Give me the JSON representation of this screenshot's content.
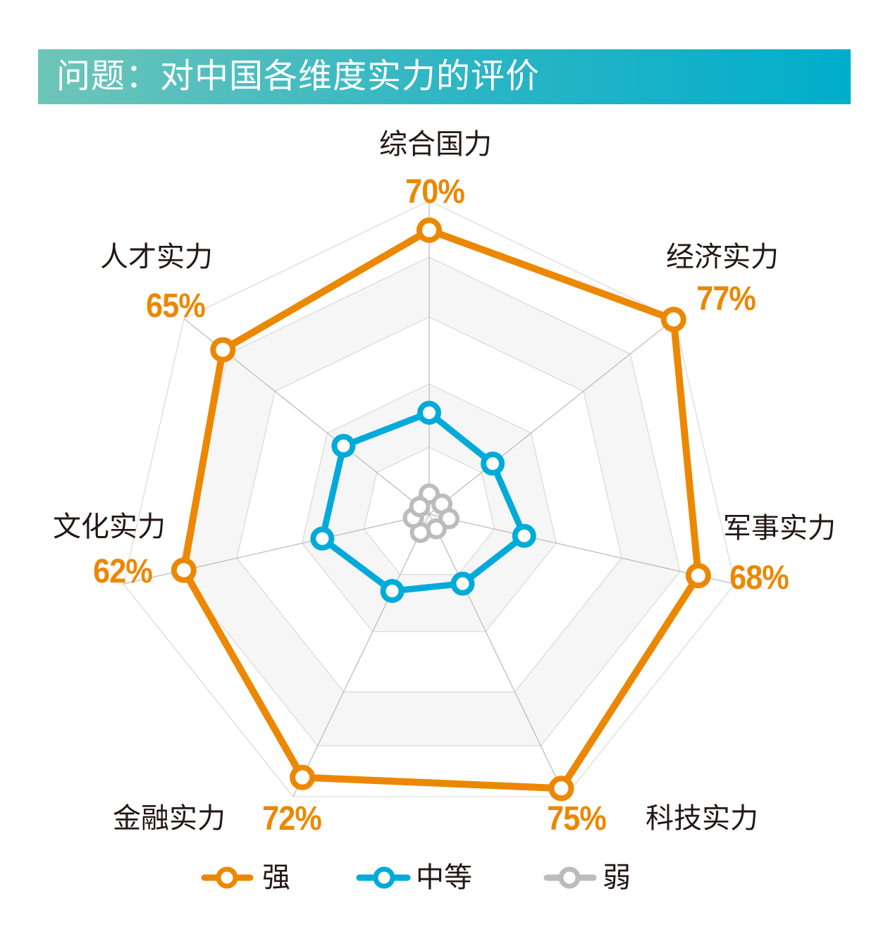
{
  "title": "问题：对中国各维度实力的评价",
  "colors": {
    "strong": "#ec8700",
    "medium": "#00aad9",
    "weak": "#bcbcbc",
    "banner_start": "#6ec5b8",
    "banner_end": "#00aecb"
  },
  "chart_data": {
    "type": "radar",
    "title": "问题：对中国各维度实力的评价",
    "categories": [
      "综合国力",
      "经济实力",
      "军事实力",
      "科技实力",
      "金融实力",
      "文化实力",
      "人才实力"
    ],
    "series": [
      {
        "name": "强",
        "values": [
          70,
          77,
          68,
          75,
          72,
          62,
          65
        ],
        "value_labels": [
          "70%",
          "77%",
          "68%",
          "75%",
          "72%",
          "62%",
          "65%"
        ]
      },
      {
        "name": "中等",
        "values": [
          25,
          20,
          24,
          19,
          21,
          27,
          27
        ]
      },
      {
        "name": "弱",
        "values": [
          5,
          4,
          5,
          4,
          5,
          4,
          3
        ]
      }
    ],
    "grid": true,
    "legend": "bottom"
  }
}
